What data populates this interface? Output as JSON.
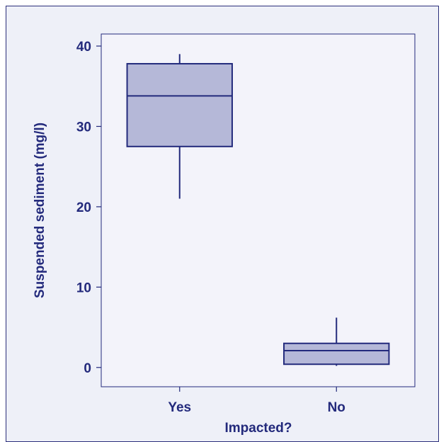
{
  "chart_data": {
    "type": "box",
    "title": "",
    "xlabel": "Impacted?",
    "ylabel": "Suspended sediment (mg/l)",
    "ylim": [
      -2.4,
      41.5
    ],
    "yticks": [
      0,
      10,
      20,
      30,
      40
    ],
    "categories": [
      "Yes",
      "No"
    ],
    "boxes": [
      {
        "category": "Yes",
        "whisker_low": 21.0,
        "q1": 27.5,
        "median": 33.8,
        "q3": 37.8,
        "whisker_high": 39.0
      },
      {
        "category": "No",
        "whisker_low": 0.2,
        "q1": 0.4,
        "median": 2.1,
        "q3": 3.0,
        "whisker_high": 6.2
      }
    ],
    "grid": false,
    "colors": {
      "box_fill": "#b5b8d8",
      "line": "#232a7c",
      "plot_bg": "#f3f3fa",
      "frame_bg": "#eef0f8"
    }
  }
}
